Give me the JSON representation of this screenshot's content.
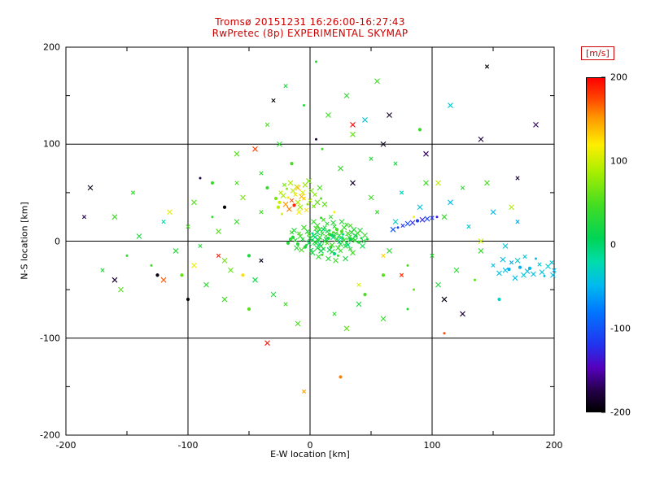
{
  "title": {
    "line1": "Tromsø 20151231 16:26:00-16:27:43",
    "line2": "RwPretec (8p) EXPERIMENTAL SKYMAP",
    "color": "#cc0000"
  },
  "axes": {
    "xlabel": "E-W location [km]",
    "ylabel": "N-S location [km]",
    "xticks": [
      -200,
      -100,
      0,
      100,
      200
    ],
    "yticks": [
      -200,
      -100,
      0,
      100,
      200
    ],
    "minor_ticks": [
      -150,
      -50,
      50,
      150
    ],
    "grid": [
      -100,
      0,
      100
    ],
    "color": "#000000"
  },
  "colorbar": {
    "label": "[m/s]",
    "label_color": "#cc0000",
    "ticks": [
      200,
      100,
      0,
      -100,
      -200
    ],
    "min": -200,
    "max": 200
  },
  "chart_data": {
    "type": "scatter",
    "title": "Tromsø 20151231 16:26:00-16:27:43 / RwPretec (8p) EXPERIMENTAL SKYMAP",
    "xlabel": "E-W location [km]",
    "ylabel": "N-S location [km]",
    "xlim": [
      -200,
      200
    ],
    "ylim": [
      -200,
      200
    ],
    "grid": true,
    "legend": "colorbar right, velocity m/s",
    "colormap_stops": [
      [
        0.0,
        "#000000"
      ],
      [
        0.06,
        "#220044"
      ],
      [
        0.13,
        "#5500bb"
      ],
      [
        0.2,
        "#2233ee"
      ],
      [
        0.3,
        "#0077ff"
      ],
      [
        0.38,
        "#00bbee"
      ],
      [
        0.45,
        "#00ddaa"
      ],
      [
        0.52,
        "#00d455"
      ],
      [
        0.62,
        "#44dd22"
      ],
      [
        0.72,
        "#aaee00"
      ],
      [
        0.8,
        "#ffee00"
      ],
      [
        0.88,
        "#ff9900"
      ],
      [
        0.94,
        "#ff4400"
      ],
      [
        1.0,
        "#ff0000"
      ]
    ],
    "point_format": [
      "x_km",
      "y_km",
      "velocity_ms"
    ],
    "points": [
      [
        2,
        1,
        30
      ],
      [
        5,
        -2,
        25
      ],
      [
        8,
        4,
        35
      ],
      [
        12,
        0,
        40
      ],
      [
        15,
        3,
        28
      ],
      [
        18,
        -4,
        45
      ],
      [
        10,
        8,
        32
      ],
      [
        6,
        -7,
        22
      ],
      [
        20,
        5,
        38
      ],
      [
        14,
        -2,
        50
      ],
      [
        3,
        6,
        27
      ],
      [
        9,
        -5,
        33
      ],
      [
        16,
        7,
        42
      ],
      [
        22,
        2,
        36
      ],
      [
        7,
        1,
        29
      ],
      [
        11,
        -8,
        24
      ],
      [
        19,
        9,
        48
      ],
      [
        25,
        -3,
        31
      ],
      [
        13,
        5,
        44
      ],
      [
        4,
        -1,
        26
      ],
      [
        17,
        -6,
        39
      ],
      [
        21,
        8,
        34
      ],
      [
        28,
        1,
        41
      ],
      [
        0,
        3,
        23
      ],
      [
        -3,
        -4,
        37
      ],
      [
        24,
        6,
        46
      ],
      [
        30,
        -2,
        30
      ],
      [
        -6,
        2,
        28
      ],
      [
        26,
        10,
        52
      ],
      [
        32,
        4,
        35
      ],
      [
        1,
        -9,
        21
      ],
      [
        23,
        -7,
        43
      ],
      [
        27,
        3,
        29
      ],
      [
        -1,
        7,
        55
      ],
      [
        29,
        -5,
        33
      ],
      [
        35,
        2,
        40
      ],
      [
        -4,
        -6,
        26
      ],
      [
        31,
        8,
        47
      ],
      [
        8,
        12,
        38
      ],
      [
        12,
        14,
        31
      ],
      [
        16,
        11,
        25
      ],
      [
        5,
        13,
        49
      ],
      [
        20,
        15,
        36
      ],
      [
        -8,
        5,
        42
      ],
      [
        -10,
        -3,
        28
      ],
      [
        33,
        -8,
        34
      ],
      [
        37,
        1,
        30
      ],
      [
        2,
        -12,
        23
      ],
      [
        10,
        -14,
        45
      ],
      [
        18,
        -11,
        27
      ],
      [
        6,
        16,
        39
      ],
      [
        14,
        18,
        33
      ],
      [
        22,
        12,
        50
      ],
      [
        -2,
        10,
        29
      ],
      [
        25,
        -10,
        37
      ],
      [
        -5,
        14,
        44
      ],
      [
        38,
        5,
        26
      ],
      [
        -12,
        1,
        32
      ],
      [
        28,
        14,
        41
      ],
      [
        34,
        9,
        35
      ],
      [
        40,
        -1,
        28
      ],
      [
        -7,
        -9,
        48
      ],
      [
        36,
        12,
        30
      ],
      [
        -9,
        8,
        53
      ],
      [
        42,
        3,
        24
      ],
      [
        3,
        20,
        38
      ],
      [
        11,
        22,
        46
      ],
      [
        19,
        19,
        31
      ],
      [
        -14,
        4,
        27
      ],
      [
        30,
        17,
        43
      ],
      [
        7,
        -16,
        35
      ],
      [
        15,
        -18,
        29
      ],
      [
        23,
        -15,
        40
      ],
      [
        -11,
        -7,
        33
      ],
      [
        39,
        8,
        51
      ],
      [
        44,
        0,
        25
      ],
      [
        -16,
        2,
        37
      ],
      [
        26,
        20,
        30
      ],
      [
        33,
        16,
        45
      ],
      [
        41,
        11,
        28
      ],
      [
        9,
        24,
        34
      ],
      [
        17,
        25,
        42
      ],
      [
        -13,
        11,
        26
      ],
      [
        45,
        6,
        39
      ],
      [
        -18,
        -2,
        31
      ],
      [
        35,
        -12,
        47
      ],
      [
        29,
        -18,
        23
      ],
      [
        -15,
        9,
        36
      ],
      [
        47,
        2,
        29
      ],
      [
        21,
        -20,
        44
      ],
      [
        13,
        2,
        5
      ],
      [
        8,
        -3,
        -5
      ],
      [
        18,
        6,
        8
      ],
      [
        24,
        -1,
        2
      ],
      [
        4,
        4,
        -8
      ],
      [
        16,
        -9,
        10
      ],
      [
        27,
        7,
        -3
      ],
      [
        6,
        9,
        6
      ],
      [
        31,
        -4,
        -10
      ],
      [
        11,
        12,
        4
      ],
      [
        20,
        -13,
        -6
      ],
      [
        -1,
        -2,
        12
      ],
      [
        37,
        6,
        9
      ],
      [
        43,
        -5,
        15
      ],
      [
        2,
        8,
        -12
      ],
      [
        14,
        10,
        18
      ],
      [
        25,
        3,
        -15
      ],
      [
        9,
        -10,
        14
      ],
      [
        33,
        2,
        7
      ],
      [
        19,
        4,
        -2
      ],
      [
        -20,
        38,
        150
      ],
      [
        -15,
        42,
        170
      ],
      [
        -18,
        45,
        120
      ],
      [
        -10,
        40,
        90
      ],
      [
        -12,
        48,
        110
      ],
      [
        -8,
        35,
        80
      ],
      [
        -25,
        40,
        100
      ],
      [
        -5,
        44,
        130
      ],
      [
        -14,
        52,
        95
      ],
      [
        -22,
        47,
        85
      ],
      [
        -2,
        38,
        75
      ],
      [
        -17,
        33,
        160
      ],
      [
        -6,
        50,
        105
      ],
      [
        0,
        42,
        88
      ],
      [
        -28,
        44,
        70
      ],
      [
        -11,
        56,
        98
      ],
      [
        3,
        36,
        65
      ],
      [
        -9,
        30,
        115
      ],
      [
        -19,
        54,
        78
      ],
      [
        -24,
        50,
        92
      ],
      [
        -4,
        58,
        82
      ],
      [
        6,
        40,
        60
      ],
      [
        -13,
        37,
        185
      ],
      [
        -7,
        46,
        140
      ],
      [
        1,
        52,
        72
      ],
      [
        -21,
        58,
        66
      ],
      [
        9,
        44,
        55
      ],
      [
        -16,
        60,
        88
      ],
      [
        -3,
        32,
        125
      ],
      [
        12,
        38,
        58
      ],
      [
        -26,
        35,
        95
      ],
      [
        4,
        48,
        76
      ],
      [
        -1,
        62,
        68
      ],
      [
        8,
        55,
        50
      ],
      [
        -23,
        28,
        108
      ],
      [
        -60,
        20,
        40
      ],
      [
        -75,
        10,
        55
      ],
      [
        -90,
        -5,
        30
      ],
      [
        -50,
        -15,
        25
      ],
      [
        -65,
        -30,
        60
      ],
      [
        -40,
        30,
        45
      ],
      [
        -55,
        45,
        70
      ],
      [
        -80,
        25,
        35
      ],
      [
        -100,
        15,
        50
      ],
      [
        -45,
        -40,
        20
      ],
      [
        -70,
        -20,
        65
      ],
      [
        -35,
        55,
        40
      ],
      [
        -110,
        -10,
        30
      ],
      [
        -95,
        40,
        55
      ],
      [
        -120,
        20,
        -20
      ],
      [
        -130,
        -25,
        45
      ],
      [
        -85,
        -45,
        35
      ],
      [
        -60,
        60,
        50
      ],
      [
        -140,
        5,
        25
      ],
      [
        -105,
        -35,
        60
      ],
      [
        55,
        30,
        40
      ],
      [
        70,
        20,
        -30
      ],
      [
        65,
        -10,
        35
      ],
      [
        80,
        -25,
        50
      ],
      [
        50,
        45,
        45
      ],
      [
        90,
        35,
        -40
      ],
      [
        100,
        -15,
        30
      ],
      [
        60,
        -35,
        55
      ],
      [
        110,
        25,
        40
      ],
      [
        75,
        50,
        -25
      ],
      [
        120,
        -30,
        35
      ],
      [
        85,
        -50,
        60
      ],
      [
        130,
        15,
        -35
      ],
      [
        95,
        60,
        45
      ],
      [
        105,
        -45,
        30
      ],
      [
        45,
        -55,
        50
      ],
      [
        140,
        -10,
        40
      ],
      [
        115,
        40,
        -45
      ],
      [
        125,
        55,
        35
      ],
      [
        135,
        -40,
        55
      ],
      [
        -30,
        -55,
        30
      ],
      [
        -20,
        -65,
        45
      ],
      [
        40,
        -65,
        25
      ],
      [
        -50,
        -70,
        55
      ],
      [
        20,
        -75,
        35
      ],
      [
        60,
        -80,
        40
      ],
      [
        -10,
        -85,
        50
      ],
      [
        80,
        -70,
        30
      ],
      [
        -70,
        -60,
        45
      ],
      [
        30,
        -90,
        60
      ],
      [
        -40,
        70,
        35
      ],
      [
        -15,
        80,
        50
      ],
      [
        25,
        75,
        40
      ],
      [
        50,
        85,
        30
      ],
      [
        -60,
        90,
        55
      ],
      [
        10,
        95,
        45
      ],
      [
        70,
        80,
        25
      ],
      [
        -25,
        100,
        35
      ],
      [
        35,
        110,
        60
      ],
      [
        -80,
        60,
        40
      ],
      [
        150,
        30,
        -50
      ],
      [
        160,
        -5,
        -40
      ],
      [
        170,
        20,
        -55
      ],
      [
        -150,
        -15,
        35
      ],
      [
        -160,
        25,
        45
      ],
      [
        -170,
        -30,
        30
      ],
      [
        145,
        60,
        50
      ],
      [
        155,
        -60,
        -30
      ],
      [
        -145,
        50,
        40
      ],
      [
        -155,
        -50,
        55
      ],
      [
        15,
        130,
        45
      ],
      [
        -5,
        140,
        30
      ],
      [
        45,
        125,
        -40
      ],
      [
        115,
        140,
        -35
      ],
      [
        -35,
        120,
        50
      ],
      [
        90,
        115,
        40
      ],
      [
        30,
        150,
        35
      ],
      [
        -20,
        160,
        25
      ],
      [
        55,
        165,
        45
      ],
      [
        5,
        185,
        30
      ],
      [
        150,
        -25,
        -40
      ],
      [
        160,
        -30,
        -45
      ],
      [
        170,
        -20,
        -35
      ],
      [
        180,
        -28,
        -50
      ],
      [
        190,
        -32,
        -42
      ],
      [
        175,
        -35,
        -38
      ],
      [
        165,
        -22,
        -55
      ],
      [
        185,
        -18,
        -44
      ],
      [
        195,
        -26,
        -36
      ],
      [
        200,
        -30,
        -48
      ],
      [
        155,
        -33,
        -41
      ],
      [
        172,
        -27,
        -52
      ],
      [
        188,
        -24,
        -39
      ],
      [
        178,
        -31,
        -46
      ],
      [
        168,
        -38,
        -43
      ],
      [
        192,
        -36,
        -37
      ],
      [
        158,
        -19,
        -49
      ],
      [
        183,
        -34,
        -45
      ],
      [
        198,
        -22,
        -40
      ],
      [
        163,
        -29,
        -53
      ],
      [
        199,
        -35,
        -44
      ],
      [
        176,
        -16,
        -38
      ],
      [
        68,
        12,
        -100
      ],
      [
        72,
        14,
        -110
      ],
      [
        76,
        16,
        -120
      ],
      [
        80,
        18,
        -105
      ],
      [
        84,
        19,
        -125
      ],
      [
        88,
        21,
        -115
      ],
      [
        92,
        22,
        -130
      ],
      [
        96,
        23,
        -108
      ],
      [
        100,
        24,
        -118
      ],
      [
        104,
        25,
        -135
      ],
      [
        -180,
        55,
        -190
      ],
      [
        -185,
        25,
        -175
      ],
      [
        -160,
        -40,
        -185
      ],
      [
        -125,
        -35,
        -195
      ],
      [
        145,
        180,
        -200
      ],
      [
        140,
        105,
        -180
      ],
      [
        60,
        100,
        -190
      ],
      [
        -90,
        65,
        -175
      ],
      [
        35,
        60,
        -185
      ],
      [
        110,
        -60,
        -195
      ],
      [
        170,
        65,
        -180
      ],
      [
        -70,
        35,
        -200
      ],
      [
        95,
        90,
        -170
      ],
      [
        -40,
        -20,
        -190
      ],
      [
        65,
        130,
        -185
      ],
      [
        5,
        105,
        -175
      ],
      [
        -30,
        145,
        -195
      ],
      [
        125,
        -75,
        -180
      ],
      [
        185,
        120,
        -170
      ],
      [
        -100,
        -60,
        -200
      ],
      [
        35,
        120,
        200
      ],
      [
        -45,
        95,
        180
      ],
      [
        -75,
        -15,
        190
      ],
      [
        110,
        -95,
        175
      ],
      [
        -35,
        -105,
        195
      ],
      [
        75,
        -35,
        185
      ],
      [
        -120,
        -40,
        170
      ],
      [
        25,
        -140,
        160
      ],
      [
        -5,
        -155,
        150
      ],
      [
        165,
        35,
        90
      ],
      [
        -115,
        30,
        110
      ],
      [
        85,
        25,
        120
      ],
      [
        140,
        0,
        100
      ],
      [
        -95,
        -25,
        115
      ],
      [
        40,
        -45,
        105
      ],
      [
        -55,
        -35,
        125
      ],
      [
        105,
        60,
        95
      ],
      [
        60,
        -15,
        130
      ],
      [
        -10,
        55,
        140
      ],
      [
        20,
        30,
        120
      ]
    ]
  }
}
